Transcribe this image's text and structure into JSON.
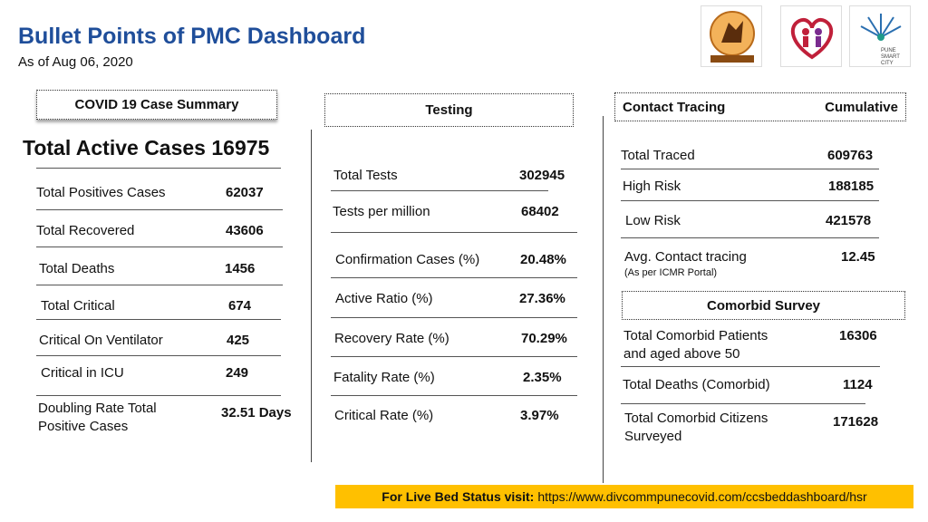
{
  "header": {
    "title": "Bullet Points of PMC Dashboard",
    "date": "As of Aug  06, 2020"
  },
  "logos": {
    "pmc": "pmc-emblem-icon",
    "health": "health-department-logo-icon",
    "smartcity_text": "PUNE SMART CITY"
  },
  "covid": {
    "header": "COVID 19 Case Summary",
    "total_active": "Total Active Cases 16975",
    "rows": [
      {
        "label": "Total Positives Cases",
        "value": "62037"
      },
      {
        "label": "Total Recovered",
        "value": "43606"
      },
      {
        "label": "Total Deaths",
        "value": "1456"
      },
      {
        "label": "Total Critical",
        "value": "674"
      },
      {
        "label": "Critical On Ventilator",
        "value": "425"
      },
      {
        "label": "Critical in ICU",
        "value": "249"
      }
    ],
    "doubling_label_1": "Doubling  Rate Total",
    "doubling_label_2": "Positive Cases",
    "doubling_value": "32.51 Days"
  },
  "testing": {
    "header": "Testing",
    "rows": [
      {
        "label": "Total Tests",
        "value": "302945"
      },
      {
        "label": "Tests per million",
        "value": "68402"
      },
      {
        "label": "Confirmation Cases (%)",
        "value": "20.48%"
      },
      {
        "label": "Active Ratio (%)",
        "value": "27.36%"
      },
      {
        "label": "Recovery Rate (%)",
        "value": "70.29%"
      },
      {
        "label": "Fatality Rate (%)",
        "value": "2.35%"
      },
      {
        "label": "Critical Rate (%)",
        "value": "3.97%"
      }
    ]
  },
  "contact": {
    "header": "Contact Tracing",
    "header_right": "Cumulative",
    "rows": [
      {
        "label": "Total Traced",
        "value": "609763"
      },
      {
        "label": "High Risk",
        "value": "188185"
      },
      {
        "label": "Low Risk",
        "value": "421578"
      },
      {
        "label": "Avg. Contact tracing",
        "value": "12.45"
      }
    ],
    "avg_note": "(As per ICMR Portal)"
  },
  "comorbid": {
    "header": "Comorbid Survey",
    "patients_label_1": "Total Comorbid Patients",
    "patients_label_2": "and aged above 50",
    "patients_value": "16306",
    "deaths_label": "Total Deaths (Comorbid)",
    "deaths_value": "1124",
    "citizens_label_1": "Total Comorbid Citizens",
    "citizens_label_2": "Surveyed",
    "citizens_value": "171628"
  },
  "footer": {
    "label": "For Live Bed Status visit:",
    "url": "https://www.divcommpunecovid.com/ccsbeddashboard/hsr"
  }
}
